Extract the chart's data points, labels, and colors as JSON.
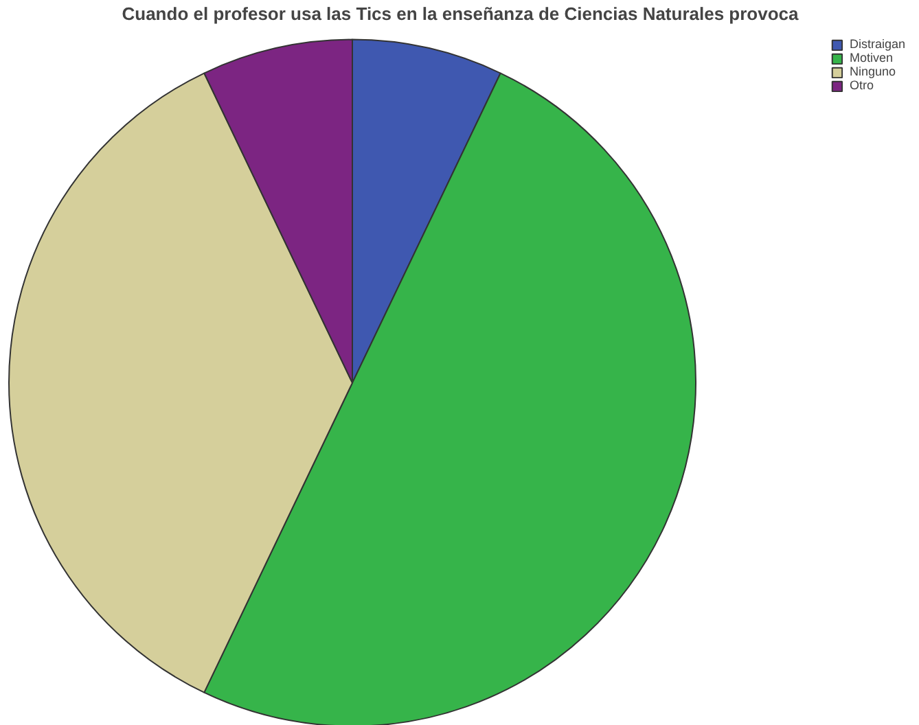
{
  "chart_data": {
    "type": "pie",
    "title": "Cuando el profesor usa las Tics en la enseñanza de Ciencias Naturales provoca",
    "categories": [
      "Distraigan",
      "Motiven",
      "Ninguno",
      "Otro"
    ],
    "values": [
      7.1,
      50,
      35.8,
      7.1
    ],
    "colors": [
      "#3f58b0",
      "#36b44a",
      "#d5cf9b",
      "#7c2582"
    ],
    "legend": "top right"
  }
}
